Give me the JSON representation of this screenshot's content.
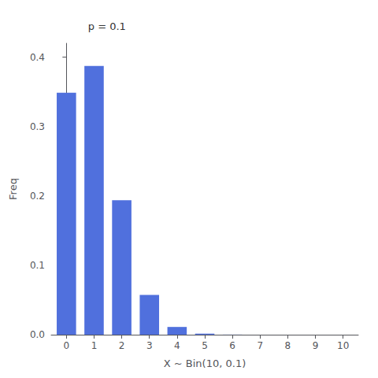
{
  "chart_data": {
    "type": "bar",
    "x": [
      0,
      1,
      2,
      3,
      4,
      5,
      6,
      7,
      8,
      9,
      10
    ],
    "values": [
      0.3486784401,
      0.387420489,
      0.19371024450000002,
      0.057395628,
      0.011160261,
      0.0014880348,
      0.000137781,
      8.748e-06,
      3.645e-07,
      9e-09,
      1e-10
    ],
    "xlabel": "X ~ Bin(10, 0.1)",
    "ylabel": "Freq",
    "annotation": "p = 0.1",
    "xlim": [
      -0.55,
      10.55
    ],
    "xticks": [
      0,
      1,
      2,
      3,
      4,
      5,
      6,
      7,
      8,
      9,
      10
    ],
    "ylim": [
      0,
      0.42
    ],
    "yticks": [
      {
        "value": 0.0,
        "label": "0.0"
      },
      0.1,
      0.2,
      0.3,
      0.4
    ],
    "grid": false
  }
}
